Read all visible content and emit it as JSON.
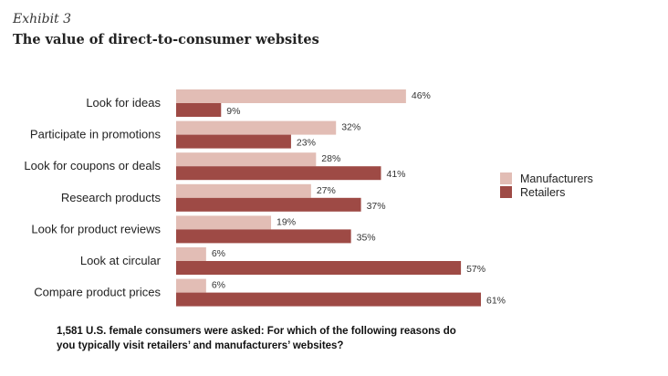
{
  "header": {
    "exhibit": "Exhibit 3",
    "title": "The value of direct-to-consumer websites"
  },
  "chart_data": {
    "type": "bar",
    "orientation": "horizontal",
    "categories": [
      "Look for ideas",
      "Participate in promotions",
      "Look for coupons or deals",
      "Research products",
      "Look for product reviews",
      "Look at circular",
      "Compare product prices"
    ],
    "series": [
      {
        "name": "Manufacturers",
        "color": "#e2bdb5",
        "values": [
          46,
          32,
          28,
          27,
          19,
          6,
          6
        ]
      },
      {
        "name": "Retailers",
        "color": "#9e4a45",
        "values": [
          9,
          23,
          41,
          37,
          35,
          57,
          61
        ]
      }
    ],
    "value_suffix": "%",
    "xlim": [
      0,
      61
    ],
    "legend_position": "right"
  },
  "caption": "1,581 U.S. female consumers were asked: For which of the following reasons do you typically visit retailers’ and manufacturers’ websites?"
}
